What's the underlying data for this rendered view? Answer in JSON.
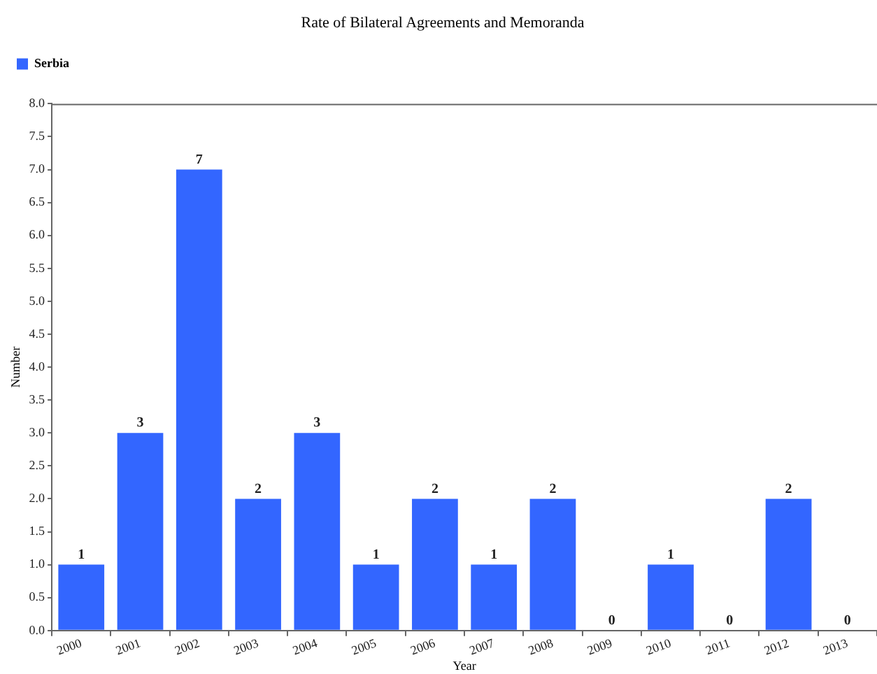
{
  "chart_data": {
    "type": "bar",
    "title": "Rate of Bilateral Agreements and Memoranda",
    "xlabel": "Year",
    "ylabel": "Number",
    "categories": [
      "2000",
      "2001",
      "2002",
      "2003",
      "2004",
      "2005",
      "2006",
      "2007",
      "2008",
      "2009",
      "2010",
      "2011",
      "2012",
      "2013"
    ],
    "series": [
      {
        "name": "Serbia",
        "color": "#3366ff",
        "values": [
          1,
          3,
          7,
          2,
          3,
          1,
          2,
          1,
          2,
          0,
          1,
          0,
          2,
          0
        ]
      }
    ],
    "ylim": [
      0,
      8
    ],
    "yticks": [
      {
        "value": 0,
        "label": "0.0"
      },
      {
        "value": 0.5,
        "label": "0.5"
      },
      {
        "value": 1,
        "label": "1.0"
      },
      {
        "value": 1.5,
        "label": "1.5"
      },
      {
        "value": 2,
        "label": "2.0"
      },
      {
        "value": 2.5,
        "label": "2.5"
      },
      {
        "value": 3,
        "label": "3.0"
      },
      {
        "value": 3.5,
        "label": "3.5"
      },
      {
        "value": 4,
        "label": "4.0"
      },
      {
        "value": 4.5,
        "label": "4.5"
      },
      {
        "value": 5,
        "label": "5.0"
      },
      {
        "value": 5.5,
        "label": "5.5"
      },
      {
        "value": 6,
        "label": "6.0"
      },
      {
        "value": 6.5,
        "label": "6.5"
      },
      {
        "value": 7,
        "label": "7.0"
      },
      {
        "value": 7.5,
        "label": "7.5"
      },
      {
        "value": 8,
        "label": "8.0"
      }
    ],
    "grid": false,
    "legend": "top left",
    "data_labels": true
  }
}
